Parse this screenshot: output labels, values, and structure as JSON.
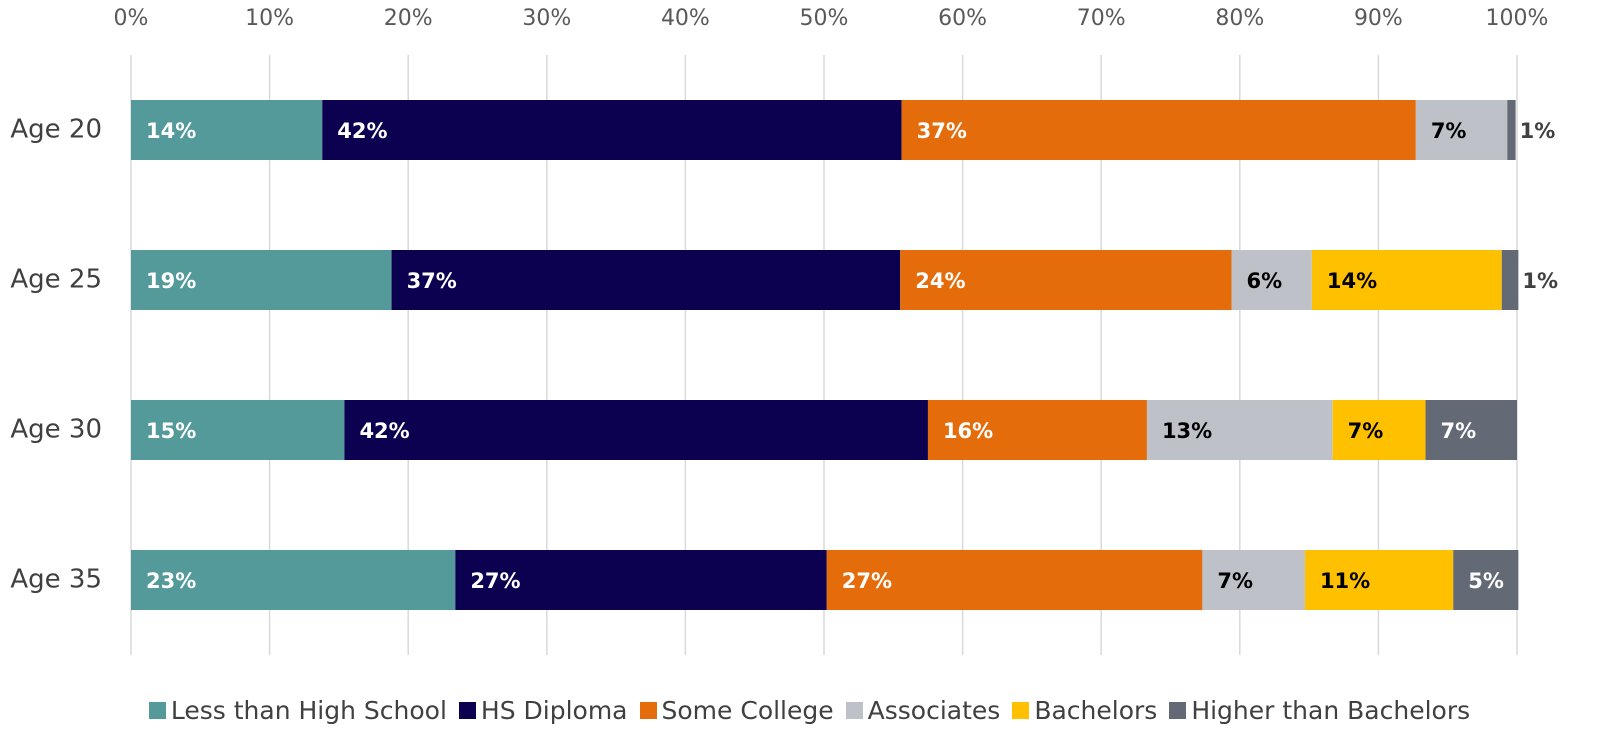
{
  "chart_data": {
    "type": "stacked-bar-horizontal",
    "categories": [
      "Age 20",
      "Age 25",
      "Age 30",
      "Age 35"
    ],
    "xlim": [
      0,
      100
    ],
    "xticks": [
      {
        "value": 0,
        "label": "0%"
      },
      {
        "value": 10,
        "label": "10%"
      },
      {
        "value": 20,
        "label": "20%"
      },
      {
        "value": 30,
        "label": "30%"
      },
      {
        "value": 40,
        "label": "40%"
      },
      {
        "value": 50,
        "label": "50%"
      },
      {
        "value": 60,
        "label": "60%"
      },
      {
        "value": 70,
        "label": "70%"
      },
      {
        "value": 80,
        "label": "80%"
      },
      {
        "value": 90,
        "label": "90%"
      },
      {
        "value": 100,
        "label": "100%"
      }
    ],
    "grid": true,
    "legend": "bottom",
    "series": [
      {
        "name": "Less than High School",
        "color": "#559a9b",
        "values": [
          13.8,
          18.8,
          15.4,
          23.4
        ],
        "value_labels": [
          "14%",
          "19%",
          "15%",
          "23%"
        ]
      },
      {
        "name": "HS Diploma",
        "color": "#0c0050",
        "values": [
          41.8,
          36.7,
          42.1,
          26.8
        ],
        "value_labels": [
          "42%",
          "37%",
          "42%",
          "27%"
        ]
      },
      {
        "name": "Some College",
        "color": "#e46c0a",
        "values": [
          37.1,
          23.9,
          15.8,
          27.1
        ],
        "value_labels": [
          "37%",
          "24%",
          "16%",
          "27%"
        ]
      },
      {
        "name": "Associates",
        "color": "#bec2c8",
        "values": [
          6.6,
          5.8,
          13.4,
          7.4
        ],
        "value_labels": [
          "7%",
          "6%",
          "13%",
          "7%"
        ]
      },
      {
        "name": "Bachelors",
        "color": "#ffc000",
        "values": [
          0,
          13.7,
          6.7,
          10.7
        ],
        "value_labels": [
          null,
          "14%",
          "7%",
          "11%"
        ]
      },
      {
        "name": "Higher than Bachelors",
        "color": "#636a75",
        "values": [
          0.6,
          1.2,
          6.6,
          4.7
        ],
        "value_labels": [
          "1%",
          "1%",
          "7%",
          "5%"
        ]
      }
    ]
  }
}
